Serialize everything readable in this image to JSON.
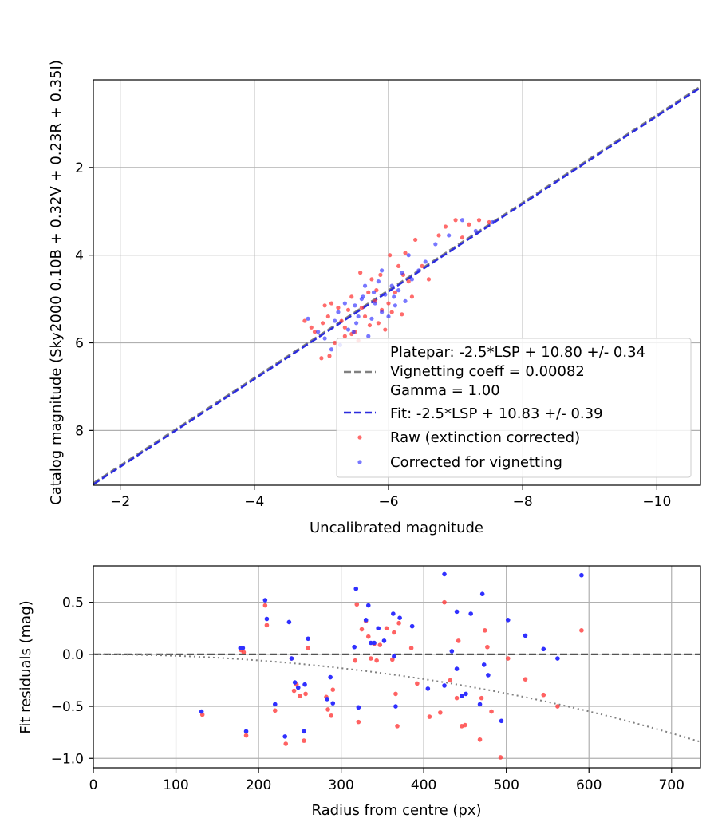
{
  "chart_data": [
    {
      "type": "scatter",
      "xlabel": "Uncalibrated magnitude",
      "ylabel": "Catalog magnitude (Sky2000 0.10B + 0.32V + 0.23R + 0.35I)",
      "xlim": [
        -1.6,
        -10.65
      ],
      "ylim": [
        9.25,
        0.0
      ],
      "x_inverted": true,
      "y_inverted": true,
      "xticks": [
        -2,
        -4,
        -6,
        -8,
        -10
      ],
      "xtick_labels": [
        "−2",
        "−4",
        "−6",
        "−8",
        "−10"
      ],
      "yticks": [
        2,
        4,
        6,
        8
      ],
      "ytick_labels": [
        "2",
        "4",
        "6",
        "8"
      ],
      "grid": true,
      "legend_placement": "lower-right",
      "legend": {
        "platepar": "Platepar: -2.5*LSP + 10.80 +/- 0.34",
        "vignetting": "Vignetting coeff = 0.00082",
        "gamma": "Gamma = 1.00",
        "fit": "Fit: -2.5*LSP + 10.83 +/- 0.39",
        "raw": "Raw (extinction corrected)",
        "corrected": "Corrected for vignetting"
      },
      "lines": [
        {
          "name": "platepar",
          "color": "#808080",
          "style": "dashed",
          "intercept": 10.8,
          "slope": 1.0
        },
        {
          "name": "fit",
          "color": "#2b2bdd",
          "style": "dashed",
          "intercept": 10.83,
          "slope": 1.0
        }
      ],
      "series": [
        {
          "name": "Raw (extinction corrected)",
          "color": "#ff3b3b",
          "points": [
            [
              -4.75,
              5.5
            ],
            [
              -4.85,
              5.65
            ],
            [
              -4.9,
              5.75
            ],
            [
              -5.0,
              6.35
            ],
            [
              -5.05,
              5.15
            ],
            [
              -5.1,
              5.4
            ],
            [
              -5.15,
              5.1
            ],
            [
              -5.2,
              6.0
            ],
            [
              -5.25,
              5.2
            ],
            [
              -5.3,
              5.5
            ],
            [
              -5.35,
              5.65
            ],
            [
              -5.4,
              5.25
            ],
            [
              -5.45,
              5.8
            ],
            [
              -5.5,
              5.75
            ],
            [
              -5.55,
              5.95
            ],
            [
              -5.6,
              5.2
            ],
            [
              -5.65,
              5.4
            ],
            [
              -5.7,
              4.85
            ],
            [
              -5.75,
              4.55
            ],
            [
              -5.8,
              5.05
            ],
            [
              -5.85,
              5.55
            ],
            [
              -5.88,
              4.45
            ],
            [
              -5.9,
              5.25
            ],
            [
              -5.95,
              5.7
            ],
            [
              -6.0,
              5.1
            ],
            [
              -6.05,
              5.3
            ],
            [
              -6.1,
              4.85
            ],
            [
              -6.15,
              4.25
            ],
            [
              -6.2,
              5.35
            ],
            [
              -6.25,
              3.95
            ],
            [
              -6.3,
              4.6
            ],
            [
              -6.35,
              4.95
            ],
            [
              -6.4,
              3.65
            ],
            [
              -6.5,
              4.25
            ],
            [
              -6.6,
              4.55
            ],
            [
              -6.75,
              3.55
            ],
            [
              -6.85,
              3.35
            ],
            [
              -7.0,
              3.2
            ],
            [
              -7.1,
              3.6
            ],
            [
              -7.2,
              3.3
            ],
            [
              -7.35,
              3.2
            ],
            [
              -7.5,
              3.25
            ],
            [
              -5.02,
              5.55
            ],
            [
              -5.58,
              4.4
            ],
            [
              -5.82,
              4.8
            ],
            [
              -5.12,
              6.3
            ],
            [
              -6.02,
              4.0
            ],
            [
              -5.72,
              5.6
            ],
            [
              -5.45,
              4.95
            ],
            [
              -6.22,
              4.45
            ],
            [
              -5.35,
              5.85
            ]
          ]
        },
        {
          "name": "Corrected for vignetting",
          "color": "#3030ff",
          "points": [
            [
              -4.8,
              5.45
            ],
            [
              -4.95,
              5.75
            ],
            [
              -5.05,
              5.9
            ],
            [
              -5.15,
              6.15
            ],
            [
              -5.2,
              5.5
            ],
            [
              -5.25,
              5.3
            ],
            [
              -5.35,
              5.1
            ],
            [
              -5.4,
              5.7
            ],
            [
              -5.5,
              5.15
            ],
            [
              -5.55,
              5.4
            ],
            [
              -5.6,
              5.0
            ],
            [
              -5.65,
              4.7
            ],
            [
              -5.7,
              5.85
            ],
            [
              -5.75,
              5.45
            ],
            [
              -5.8,
              5.1
            ],
            [
              -5.85,
              4.6
            ],
            [
              -5.9,
              5.3
            ],
            [
              -5.95,
              4.9
            ],
            [
              -6.0,
              5.4
            ],
            [
              -6.05,
              4.7
            ],
            [
              -6.1,
              5.15
            ],
            [
              -6.15,
              4.8
            ],
            [
              -6.2,
              4.4
            ],
            [
              -6.3,
              4.0
            ],
            [
              -6.35,
              4.55
            ],
            [
              -6.45,
              4.35
            ],
            [
              -6.55,
              4.15
            ],
            [
              -6.7,
              3.75
            ],
            [
              -6.9,
              3.55
            ],
            [
              -7.1,
              3.2
            ],
            [
              -7.3,
              3.45
            ],
            [
              -7.55,
              3.25
            ],
            [
              -5.28,
              6.05
            ],
            [
              -5.52,
              5.55
            ],
            [
              -5.9,
              4.35
            ],
            [
              -6.08,
              4.95
            ],
            [
              -5.62,
              4.95
            ],
            [
              -5.48,
              5.75
            ],
            [
              -6.25,
              5.05
            ],
            [
              -5.78,
              4.85
            ]
          ]
        }
      ]
    },
    {
      "type": "scatter",
      "xlabel": "Radius from centre (px)",
      "ylabel": "Fit residuals (mag)",
      "xlim": [
        0,
        735
      ],
      "ylim": [
        -1.09,
        0.85
      ],
      "xticks": [
        0,
        100,
        200,
        300,
        400,
        500,
        600,
        700
      ],
      "xtick_labels": [
        "0",
        "100",
        "200",
        "300",
        "400",
        "500",
        "600",
        "700"
      ],
      "yticks": [
        -1.0,
        -0.5,
        0.0,
        0.5
      ],
      "ytick_labels": [
        "−1.0",
        "−0.5",
        "0.0",
        "0.5"
      ],
      "grid": true,
      "zero_line": {
        "y": 0,
        "color": "#555555",
        "style": "dashed"
      },
      "vignetting_curve": {
        "color": "#808080",
        "style": "dotted",
        "coeff": 0.00082
      },
      "series": [
        {
          "name": "Raw",
          "color": "#ff3b3b",
          "points": [
            [
              132,
              -0.58
            ],
            [
              179,
              0.04
            ],
            [
              182,
              0.02
            ],
            [
              185,
              -0.78
            ],
            [
              208,
              0.47
            ],
            [
              210,
              0.28
            ],
            [
              220,
              -0.54
            ],
            [
              233,
              -0.86
            ],
            [
              240,
              -0.04
            ],
            [
              243,
              -0.35
            ],
            [
              246,
              -0.29
            ],
            [
              250,
              -0.4
            ],
            [
              255,
              -0.83
            ],
            [
              257,
              -0.38
            ],
            [
              260,
              0.06
            ],
            [
              282,
              -0.41
            ],
            [
              284,
              -0.53
            ],
            [
              288,
              -0.59
            ],
            [
              290,
              -0.34
            ],
            [
              317,
              -0.06
            ],
            [
              319,
              0.48
            ],
            [
              321,
              -0.65
            ],
            [
              325,
              0.24
            ],
            [
              330,
              0.32
            ],
            [
              333,
              0.17
            ],
            [
              336,
              -0.04
            ],
            [
              340,
              0.1
            ],
            [
              343,
              -0.06
            ],
            [
              347,
              0.09
            ],
            [
              355,
              0.25
            ],
            [
              362,
              -0.05
            ],
            [
              364,
              0.21
            ],
            [
              366,
              -0.38
            ],
            [
              368,
              -0.69
            ],
            [
              370,
              0.3
            ],
            [
              385,
              0.06
            ],
            [
              392,
              -0.28
            ],
            [
              407,
              -0.6
            ],
            [
              420,
              -0.56
            ],
            [
              425,
              0.5
            ],
            [
              432,
              -0.25
            ],
            [
              440,
              -0.42
            ],
            [
              442,
              0.13
            ],
            [
              446,
              -0.69
            ],
            [
              450,
              -0.68
            ],
            [
              468,
              -0.82
            ],
            [
              470,
              -0.42
            ],
            [
              474,
              0.23
            ],
            [
              477,
              0.07
            ],
            [
              482,
              -0.55
            ],
            [
              493,
              -0.99
            ],
            [
              502,
              -0.04
            ],
            [
              523,
              -0.24
            ],
            [
              545,
              -0.39
            ],
            [
              562,
              -0.5
            ],
            [
              591,
              0.23
            ]
          ]
        },
        {
          "name": "Corrected",
          "color": "#3030ff",
          "points": [
            [
              131,
              -0.55
            ],
            [
              178,
              0.06
            ],
            [
              181,
              0.06
            ],
            [
              185,
              -0.74
            ],
            [
              208,
              0.52
            ],
            [
              210,
              0.34
            ],
            [
              220,
              -0.48
            ],
            [
              232,
              -0.79
            ],
            [
              237,
              0.31
            ],
            [
              240,
              -0.04
            ],
            [
              244,
              -0.27
            ],
            [
              248,
              -0.32
            ],
            [
              255,
              -0.74
            ],
            [
              256,
              -0.29
            ],
            [
              260,
              0.15
            ],
            [
              283,
              -0.43
            ],
            [
              287,
              -0.22
            ],
            [
              290,
              -0.47
            ],
            [
              316,
              0.07
            ],
            [
              318,
              0.63
            ],
            [
              321,
              -0.51
            ],
            [
              330,
              0.33
            ],
            [
              333,
              0.47
            ],
            [
              336,
              0.11
            ],
            [
              340,
              0.11
            ],
            [
              345,
              0.25
            ],
            [
              352,
              0.13
            ],
            [
              363,
              0.39
            ],
            [
              364,
              -0.02
            ],
            [
              366,
              -0.5
            ],
            [
              371,
              0.35
            ],
            [
              386,
              0.27
            ],
            [
              405,
              -0.33
            ],
            [
              425,
              -0.3
            ],
            [
              425,
              0.77
            ],
            [
              434,
              0.03
            ],
            [
              440,
              0.41
            ],
            [
              440,
              -0.14
            ],
            [
              446,
              -0.4
            ],
            [
              451,
              -0.38
            ],
            [
              457,
              0.39
            ],
            [
              468,
              -0.48
            ],
            [
              471,
              0.58
            ],
            [
              473,
              -0.1
            ],
            [
              478,
              -0.2
            ],
            [
              494,
              -0.64
            ],
            [
              502,
              0.33
            ],
            [
              523,
              0.18
            ],
            [
              545,
              0.05
            ],
            [
              562,
              -0.04
            ],
            [
              591,
              0.76
            ]
          ]
        }
      ]
    }
  ]
}
